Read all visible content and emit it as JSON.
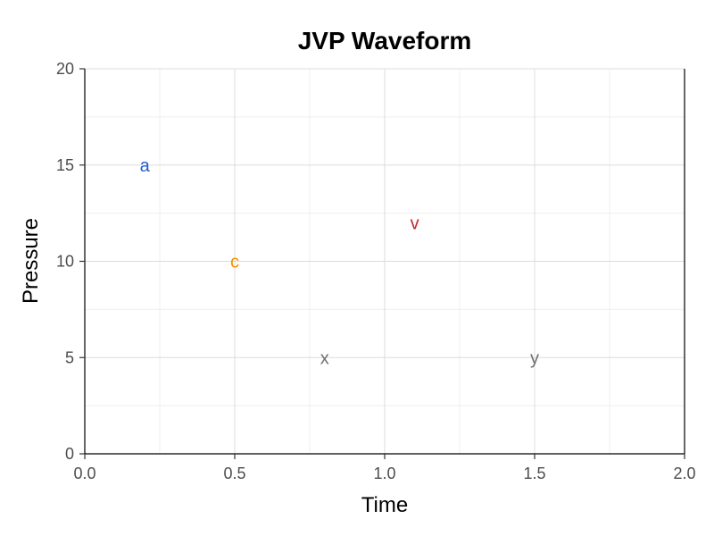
{
  "chart_data": {
    "type": "scatter",
    "title": "JVP Waveform",
    "xlabel": "Time",
    "ylabel": "Pressure",
    "xlim": [
      0,
      2
    ],
    "ylim": [
      0,
      20
    ],
    "x_ticks": [
      "0.0",
      "0.5",
      "1.0",
      "1.5",
      "2.0"
    ],
    "y_ticks": [
      "0",
      "5",
      "10",
      "15",
      "20"
    ],
    "grid": true,
    "points": [
      {
        "label": "a",
        "x": 0.2,
        "y": 15,
        "color": "#1f5fcf"
      },
      {
        "label": "c",
        "x": 0.5,
        "y": 10,
        "color": "#f39200"
      },
      {
        "label": "x",
        "x": 0.8,
        "y": 5,
        "color": "#707070"
      },
      {
        "label": "v",
        "x": 1.1,
        "y": 12,
        "color": "#c8232d"
      },
      {
        "label": "y",
        "x": 1.5,
        "y": 5,
        "color": "#707070"
      }
    ]
  }
}
